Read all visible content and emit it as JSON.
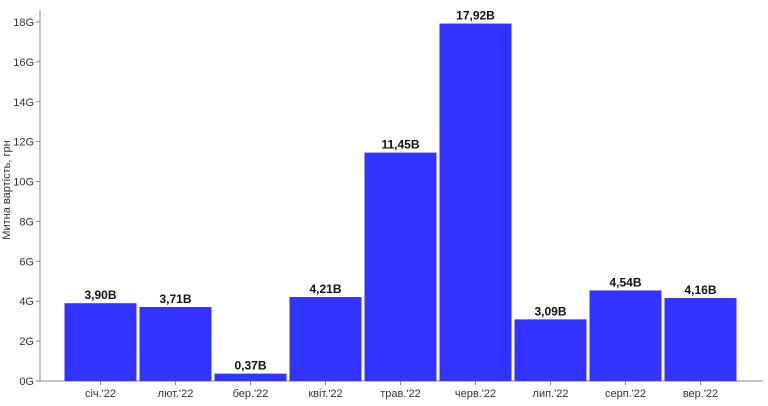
{
  "chart_data": {
    "type": "bar",
    "ylabel": "Митна вартість, грн",
    "xlabel": "",
    "title": "",
    "categories": [
      "січ.'22",
      "лют.'22",
      "бер.'22",
      "квіт.'22",
      "трав.'22",
      "черв.'22",
      "лип.'22",
      "серп.'22",
      "вер.'22"
    ],
    "values": [
      3.9,
      3.71,
      0.37,
      4.21,
      11.45,
      17.92,
      3.09,
      4.54,
      4.16
    ],
    "data_labels": [
      "3,90B",
      "3,71B",
      "0,37B",
      "4,21B",
      "11,45B",
      "17,92B",
      "3,09B",
      "4,54B",
      "4,16B"
    ],
    "y_ticks": [
      0,
      2,
      4,
      6,
      8,
      10,
      12,
      14,
      16,
      18
    ],
    "y_tick_labels": [
      "0G",
      "2G",
      "4G",
      "6G",
      "8G",
      "10G",
      "12G",
      "14G",
      "16G",
      "18G"
    ],
    "ylim": [
      0,
      18.6
    ],
    "grid": false,
    "legend": "none",
    "bar_color": "#3333ff",
    "axis_color": "#888888"
  }
}
